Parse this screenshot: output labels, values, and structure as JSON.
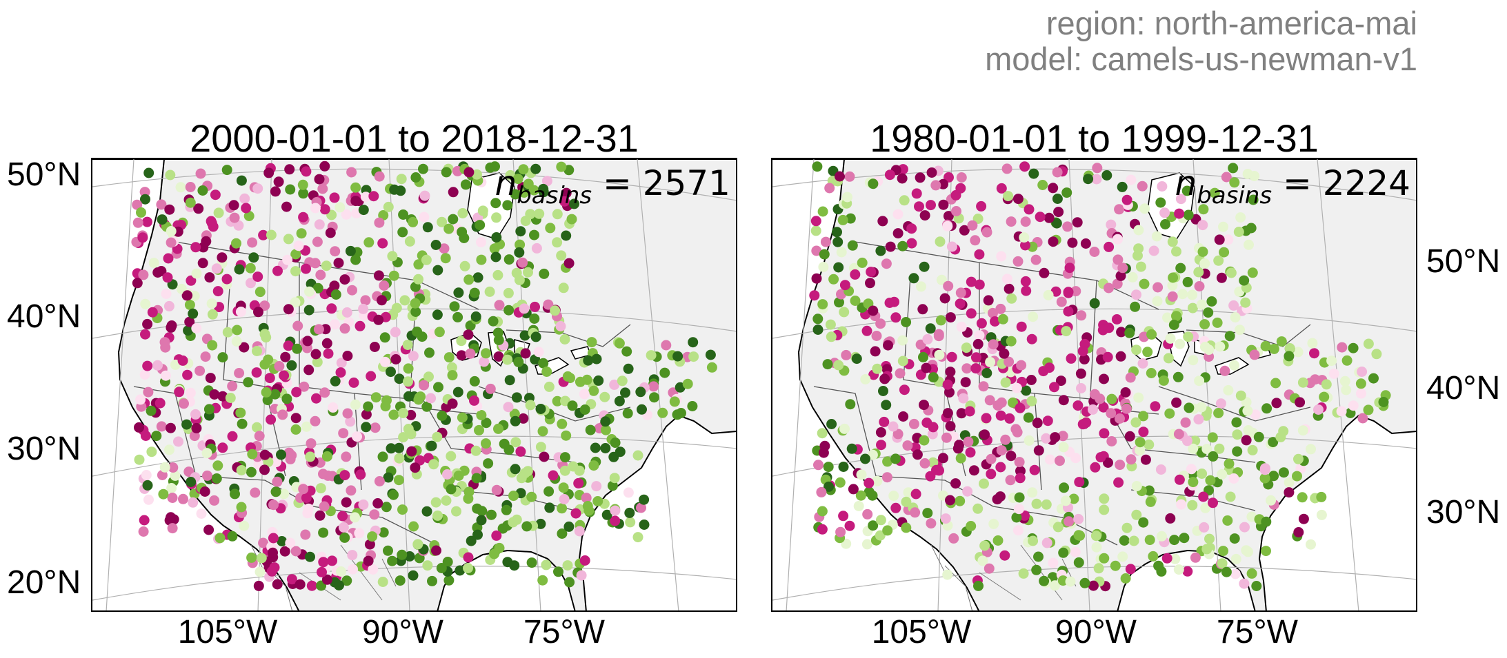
{
  "header": {
    "region": "region: north-america-mai",
    "model": "model: camels-us-newman-v1"
  },
  "panels": [
    {
      "title": "2000-01-01 to 2018-12-31",
      "count_prefix": "n",
      "count_sub": "basins",
      "count_value": "= 2571",
      "lat_ticks": [
        "50°N",
        "40°N",
        "30°N",
        "20°N"
      ],
      "lon_ticks": [
        "105°W",
        "90°W",
        "75°W"
      ]
    },
    {
      "title": "1980-01-01 to 1999-12-31",
      "count_prefix": "n",
      "count_sub": "basins",
      "count_value": "= 2224",
      "lat_ticks": [
        "50°N",
        "40°N",
        "30°N"
      ],
      "lon_ticks": [
        "105°W",
        "90°W",
        "75°W"
      ]
    }
  ],
  "colors": {
    "land": "#f0f0f0",
    "border": "#000000",
    "grid": "#b0b0b0",
    "palette": [
      "#8e0152",
      "#c51b7d",
      "#de77ae",
      "#f1b6da",
      "#fde0ef",
      "#e6f5d0",
      "#b8e186",
      "#7fbc41",
      "#4d9221",
      "#276419"
    ]
  }
}
